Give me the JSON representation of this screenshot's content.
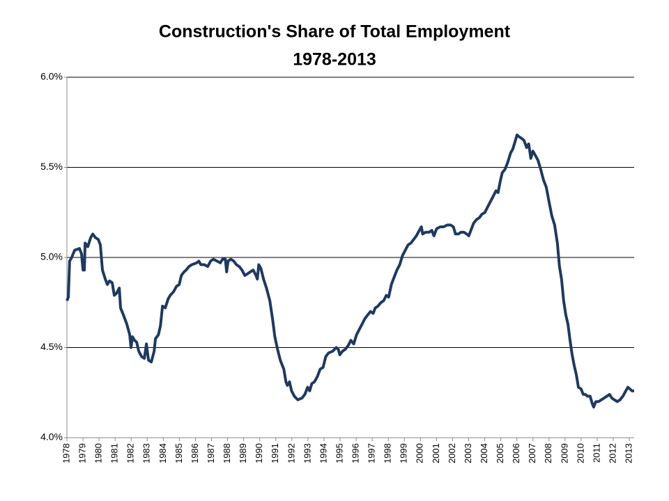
{
  "chart_data": {
    "type": "line",
    "title": "Construction's Share of Total Employment",
    "subtitle": "1978-2013",
    "color": "#1f3a5f",
    "grid": true,
    "x": [
      1978.0,
      1978.09,
      1978.17,
      1978.3,
      1978.48,
      1978.78,
      1978.91,
      1979.0,
      1979.09,
      1979.13,
      1979.3,
      1979.48,
      1979.61,
      1979.78,
      1979.95,
      1980.08,
      1980.21,
      1980.39,
      1980.52,
      1980.65,
      1980.82,
      1980.95,
      1981.08,
      1981.26,
      1981.34,
      1981.52,
      1981.73,
      1981.91,
      1981.99,
      1982.08,
      1982.21,
      1982.34,
      1982.47,
      1982.65,
      1982.82,
      1982.95,
      1983.08,
      1983.25,
      1983.43,
      1983.51,
      1983.69,
      1983.82,
      1983.95,
      1984.12,
      1984.3,
      1984.43,
      1984.64,
      1984.82,
      1984.99,
      1985.12,
      1985.29,
      1985.42,
      1985.6,
      1985.77,
      1986.08,
      1986.21,
      1986.34,
      1986.55,
      1986.77,
      1986.94,
      1987.12,
      1987.34,
      1987.55,
      1987.68,
      1987.86,
      1987.94,
      1988.03,
      1988.2,
      1988.38,
      1988.55,
      1988.72,
      1988.9,
      1989.07,
      1989.25,
      1989.42,
      1989.59,
      1989.77,
      1989.85,
      1989.94,
      1990.07,
      1990.24,
      1990.42,
      1990.63,
      1990.81,
      1990.94,
      1991.11,
      1991.28,
      1991.5,
      1991.63,
      1991.72,
      1991.85,
      1991.98,
      1992.15,
      1992.37,
      1992.63,
      1992.81,
      1992.98,
      1993.11,
      1993.24,
      1993.41,
      1993.59,
      1993.76,
      1993.94,
      1994.11,
      1994.28,
      1994.54,
      1994.76,
      1994.89,
      1994.98,
      1995.15,
      1995.32,
      1995.5,
      1995.67,
      1995.85,
      1996.02,
      1996.19,
      1996.37,
      1996.54,
      1996.71,
      1996.89,
      1997.06,
      1997.19,
      1997.36,
      1997.54,
      1997.71,
      1997.88,
      1998.02,
      1998.19,
      1998.36,
      1998.54,
      1998.71,
      1998.88,
      1999.06,
      1999.23,
      1999.41,
      1999.58,
      1999.75,
      1999.93,
      2000.06,
      2000.14,
      2000.32,
      2000.54,
      2000.71,
      2000.84,
      2001.01,
      2001.23,
      2001.45,
      2001.66,
      2001.88,
      2002.05,
      2002.18,
      2002.36,
      2002.53,
      2002.7,
      2002.88,
      2003.01,
      2003.14,
      2003.31,
      2003.49,
      2003.66,
      2003.83,
      2004.01,
      2004.18,
      2004.36,
      2004.53,
      2004.7,
      2004.83,
      2004.96,
      2005.09,
      2005.27,
      2005.44,
      2005.61,
      2005.74,
      2005.88,
      2006.01,
      2006.14,
      2006.31,
      2006.44,
      2006.61,
      2006.74,
      2006.87,
      2007.0,
      2007.13,
      2007.31,
      2007.48,
      2007.66,
      2007.83,
      2008.0,
      2008.18,
      2008.35,
      2008.52,
      2008.65,
      2008.78,
      2008.91,
      2009.05,
      2009.18,
      2009.31,
      2009.44,
      2009.57,
      2009.7,
      2009.83,
      2010.0,
      2010.13,
      2010.26,
      2010.39,
      2010.56,
      2010.69,
      2010.78,
      2010.91,
      2011.08,
      2011.26,
      2011.43,
      2011.6,
      2011.77,
      2011.91,
      2012.07,
      2012.25,
      2012.42,
      2012.6,
      2012.78,
      2012.91,
      2013.04,
      2013.17,
      2013.3
    ],
    "values": [
      4.76,
      4.78,
      4.98,
      5.0,
      5.04,
      5.05,
      5.02,
      4.93,
      4.93,
      5.08,
      5.06,
      5.11,
      5.13,
      5.11,
      5.1,
      5.07,
      4.93,
      4.88,
      4.85,
      4.87,
      4.86,
      4.79,
      4.8,
      4.83,
      4.72,
      4.68,
      4.63,
      4.57,
      4.5,
      4.56,
      4.54,
      4.53,
      4.48,
      4.45,
      4.44,
      4.52,
      4.43,
      4.42,
      4.48,
      4.55,
      4.57,
      4.62,
      4.73,
      4.72,
      4.77,
      4.79,
      4.81,
      4.84,
      4.85,
      4.9,
      4.92,
      4.93,
      4.95,
      4.96,
      4.97,
      4.98,
      4.96,
      4.96,
      4.95,
      4.98,
      4.99,
      4.98,
      4.97,
      4.99,
      4.99,
      4.92,
      4.98,
      4.99,
      4.98,
      4.96,
      4.95,
      4.93,
      4.9,
      4.91,
      4.92,
      4.93,
      4.9,
      4.88,
      4.96,
      4.94,
      4.88,
      4.83,
      4.76,
      4.65,
      4.56,
      4.49,
      4.43,
      4.38,
      4.31,
      4.29,
      4.31,
      4.26,
      4.23,
      4.21,
      4.22,
      4.24,
      4.28,
      4.26,
      4.3,
      4.31,
      4.34,
      4.38,
      4.39,
      4.45,
      4.47,
      4.48,
      4.5,
      4.49,
      4.46,
      4.48,
      4.49,
      4.51,
      4.54,
      4.52,
      4.57,
      4.6,
      4.63,
      4.66,
      4.68,
      4.7,
      4.69,
      4.72,
      4.73,
      4.75,
      4.76,
      4.79,
      4.78,
      4.85,
      4.89,
      4.93,
      4.96,
      5.01,
      5.04,
      5.07,
      5.08,
      5.1,
      5.12,
      5.15,
      5.17,
      5.13,
      5.14,
      5.14,
      5.15,
      5.12,
      5.16,
      5.17,
      5.17,
      5.18,
      5.18,
      5.17,
      5.13,
      5.13,
      5.14,
      5.14,
      5.13,
      5.12,
      5.15,
      5.19,
      5.21,
      5.22,
      5.24,
      5.25,
      5.28,
      5.31,
      5.34,
      5.37,
      5.36,
      5.42,
      5.47,
      5.49,
      5.53,
      5.58,
      5.6,
      5.64,
      5.68,
      5.67,
      5.66,
      5.65,
      5.61,
      5.63,
      5.55,
      5.59,
      5.57,
      5.54,
      5.49,
      5.43,
      5.39,
      5.31,
      5.23,
      5.18,
      5.08,
      4.95,
      4.88,
      4.76,
      4.68,
      4.63,
      4.54,
      4.46,
      4.4,
      4.35,
      4.28,
      4.27,
      4.24,
      4.24,
      4.23,
      4.23,
      4.19,
      4.17,
      4.2,
      4.2,
      4.21,
      4.22,
      4.23,
      4.24,
      4.22,
      4.21,
      4.2,
      4.21,
      4.23,
      4.26,
      4.28,
      4.27,
      4.26,
      4.26
    ],
    "xlim": [
      1978,
      2013.3
    ],
    "xticks": [
      1978,
      1979,
      1980,
      1981,
      1982,
      1983,
      1984,
      1985,
      1986,
      1987,
      1988,
      1989,
      1990,
      1991,
      1992,
      1993,
      1994,
      1995,
      1996,
      1997,
      1998,
      1999,
      2000,
      2001,
      2002,
      2003,
      2004,
      2005,
      2006,
      2007,
      2008,
      2009,
      2010,
      2011,
      2012,
      2013
    ],
    "ylim": [
      4,
      6
    ],
    "yticks": [
      {
        "value": 4,
        "label": "4.0%"
      },
      {
        "value": 4.5,
        "label": "4.5%"
      },
      {
        "value": 5,
        "label": "5.0%"
      },
      {
        "value": 5.5,
        "label": "5.5%"
      },
      {
        "value": 6,
        "label": "6.0%"
      }
    ]
  }
}
